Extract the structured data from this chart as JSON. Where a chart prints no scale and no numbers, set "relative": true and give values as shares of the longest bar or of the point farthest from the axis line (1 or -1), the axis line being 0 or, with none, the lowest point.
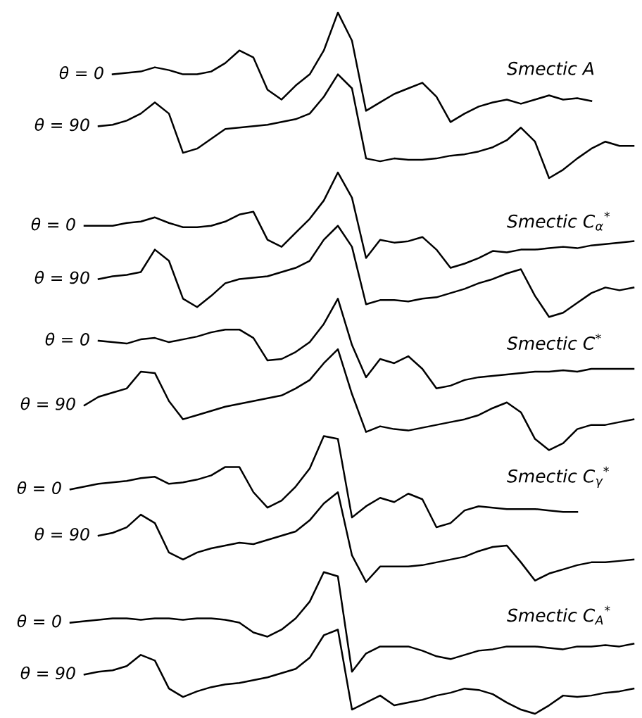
{
  "chart_data": {
    "type": "line",
    "relative": true,
    "legend": false,
    "marker": "none",
    "line_style": "solid",
    "categories": [
      null,
      null,
      null,
      null,
      null,
      null,
      null,
      null,
      null,
      null,
      null,
      null,
      null,
      null,
      null,
      null,
      null,
      null,
      null,
      null,
      null,
      null,
      null,
      null,
      null,
      null,
      null,
      null,
      null,
      null,
      null,
      null,
      null,
      null,
      null,
      null,
      null,
      null,
      null,
      null,
      null
    ],
    "series": [
      {
        "name": "θ = 0",
        "color": "#000000",
        "values": [
          null,
          null,
          null,
          0.912,
          0.914,
          0.916,
          0.922,
          0.918,
          0.912,
          0.912,
          0.916,
          0.928,
          0.946,
          0.936,
          0.89,
          0.876,
          0.896,
          0.912,
          0.946,
          1,
          0.96,
          0.86,
          0.872,
          0.884,
          0.892,
          0.9,
          0.88,
          0.844,
          0.856,
          0.866,
          0.872,
          0.876,
          0.87,
          0.876,
          0.882,
          0.876,
          0.878,
          0.874,
          null,
          null,
          null
        ]
      },
      {
        "name": "θ = 90",
        "color": "#000000",
        "values": [
          null,
          null,
          0.838,
          0.84,
          0.846,
          0.856,
          0.872,
          0.856,
          0.8,
          0.806,
          0.82,
          0.834,
          0.836,
          0.838,
          0.84,
          0.844,
          0.848,
          0.856,
          0.88,
          0.912,
          0.892,
          0.792,
          0.788,
          0.792,
          0.79,
          0.79,
          0.792,
          0.796,
          0.798,
          0.802,
          0.808,
          0.818,
          0.836,
          0.816,
          0.764,
          0.776,
          0.792,
          0.806,
          0.816,
          0.81,
          0.81
        ]
      },
      {
        "name": "θ = 0",
        "color": "#000000",
        "values": [
          null,
          0.696,
          0.696,
          0.696,
          0.7,
          0.702,
          0.708,
          0.7,
          0.694,
          0.694,
          0.696,
          0.702,
          0.712,
          0.716,
          0.676,
          0.666,
          0.686,
          0.706,
          0.732,
          0.772,
          0.736,
          0.65,
          0.676,
          0.672,
          0.674,
          0.68,
          0.662,
          0.636,
          0.642,
          0.65,
          0.66,
          0.658,
          0.662,
          0.662,
          0.664,
          0.666,
          0.664,
          0.668,
          0.67,
          0.672,
          0.674
        ]
      },
      {
        "name": "θ = 90",
        "color": "#000000",
        "values": [
          null,
          null,
          0.62,
          0.624,
          0.626,
          0.63,
          0.662,
          0.646,
          0.592,
          0.58,
          0.596,
          0.614,
          0.62,
          0.622,
          0.624,
          0.63,
          0.636,
          0.646,
          0.676,
          0.696,
          0.666,
          0.584,
          0.59,
          0.59,
          0.588,
          0.592,
          0.594,
          0.6,
          0.606,
          0.614,
          0.62,
          0.628,
          0.634,
          0.596,
          0.566,
          0.572,
          0.586,
          0.6,
          0.608,
          0.604,
          0.608
        ]
      },
      {
        "name": "θ = 0",
        "color": "#000000",
        "values": [
          null,
          null,
          0.532,
          0.53,
          0.528,
          0.534,
          0.536,
          0.53,
          0.534,
          0.538,
          0.544,
          0.548,
          0.548,
          0.536,
          0.504,
          0.506,
          0.516,
          0.53,
          0.556,
          0.592,
          0.526,
          0.48,
          0.506,
          0.5,
          0.51,
          0.492,
          0.464,
          0.468,
          0.476,
          0.48,
          0.482,
          0.484,
          0.486,
          0.488,
          0.488,
          0.49,
          0.488,
          0.492,
          0.492,
          0.492,
          0.492
        ]
      },
      {
        "name": "θ = 90",
        "color": "#000000",
        "values": [
          null,
          0.44,
          0.452,
          0.458,
          0.464,
          0.488,
          0.486,
          0.446,
          0.42,
          0.426,
          0.432,
          0.438,
          0.442,
          0.446,
          0.45,
          0.454,
          0.464,
          0.476,
          0.5,
          0.52,
          0.456,
          0.402,
          0.41,
          0.406,
          0.404,
          0.408,
          0.412,
          0.416,
          0.42,
          0.426,
          0.436,
          0.444,
          0.43,
          0.392,
          0.376,
          0.386,
          0.406,
          0.412,
          0.412,
          0.416,
          0.42
        ]
      },
      {
        "name": "θ = 0",
        "color": "#000000",
        "values": [
          0.32,
          0.324,
          0.328,
          0.33,
          0.332,
          0.336,
          0.338,
          0.328,
          0.33,
          0.334,
          0.34,
          0.352,
          0.352,
          0.316,
          0.294,
          0.304,
          0.324,
          0.35,
          0.396,
          0.392,
          0.28,
          0.296,
          0.308,
          0.302,
          0.314,
          0.306,
          0.266,
          0.272,
          0.29,
          0.296,
          0.294,
          0.292,
          0.292,
          0.292,
          0.29,
          0.288,
          0.288,
          null,
          null,
          null,
          null
        ]
      },
      {
        "name": "θ = 90",
        "color": "#000000",
        "values": [
          null,
          null,
          0.254,
          0.258,
          0.266,
          0.284,
          0.272,
          0.23,
          0.22,
          0.23,
          0.236,
          0.24,
          0.244,
          0.242,
          0.248,
          0.254,
          0.26,
          0.276,
          0.3,
          0.316,
          0.226,
          0.188,
          0.21,
          0.21,
          0.21,
          0.212,
          0.216,
          0.22,
          0.224,
          0.232,
          0.238,
          0.24,
          0.216,
          0.19,
          0.2,
          0.206,
          0.212,
          0.216,
          0.216,
          0.218,
          0.22
        ]
      },
      {
        "name": "θ = 0",
        "color": "#000000",
        "values": [
          0.13,
          0.132,
          0.134,
          0.136,
          0.136,
          0.134,
          0.136,
          0.136,
          0.134,
          0.136,
          0.136,
          0.134,
          0.13,
          0.116,
          0.11,
          0.12,
          0.136,
          0.16,
          0.202,
          0.196,
          0.06,
          0.086,
          0.096,
          0.096,
          0.096,
          0.09,
          0.082,
          0.078,
          0.084,
          0.09,
          0.092,
          0.096,
          0.096,
          0.096,
          0.094,
          0.092,
          0.096,
          0.096,
          0.098,
          0.096,
          0.1
        ]
      },
      {
        "name": "θ = 90",
        "color": "#000000",
        "values": [
          null,
          0.056,
          0.06,
          0.062,
          0.068,
          0.084,
          0.076,
          0.036,
          0.024,
          0.032,
          0.038,
          0.042,
          0.044,
          0.048,
          0.052,
          0.058,
          0.064,
          0.08,
          0.112,
          0.12,
          0.006,
          0.016,
          0.026,
          0.012,
          0.016,
          0.02,
          0.026,
          0.03,
          0.036,
          0.034,
          0.028,
          0.016,
          0.006,
          0,
          0.012,
          0.026,
          0.024,
          0.026,
          0.03,
          0.032,
          0.036
        ]
      }
    ],
    "annotations": [
      "Smectic A",
      "Smectic C$_{α}$$^{*}$",
      "Smectic C$^{*}$",
      "Smectic C$_{γ}$$^{*}$",
      "Smectic C$_{A}$$^{*}$"
    ]
  }
}
